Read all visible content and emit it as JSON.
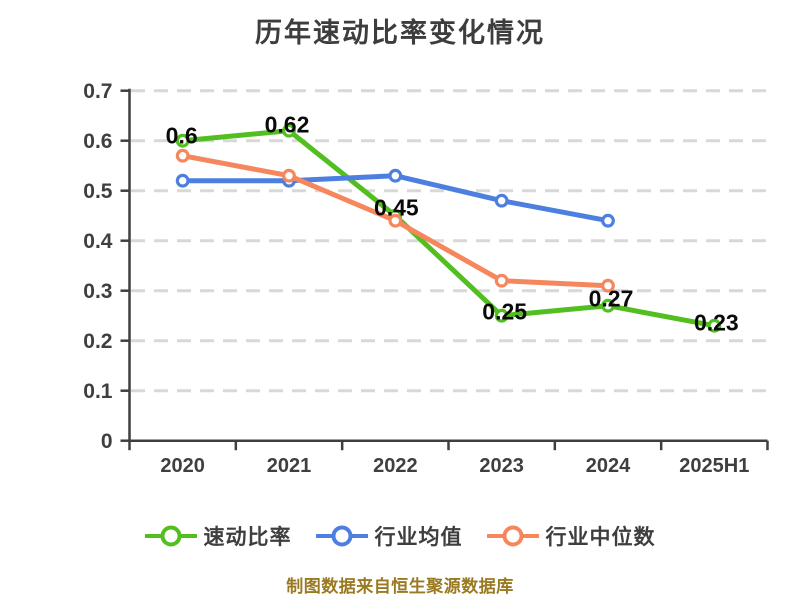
{
  "page": {
    "title": "历年速动比率变化情况",
    "footer": "制图数据来自恒生聚源数据库"
  },
  "chart_data": {
    "type": "line",
    "title": "历年速动比率变化情况",
    "categories": [
      "2020",
      "2021",
      "2022",
      "2023",
      "2024",
      "2025H1"
    ],
    "series": [
      {
        "name": "速动比率",
        "color": "#53be20",
        "values": [
          0.6,
          0.62,
          0.45,
          0.25,
          0.27,
          0.23
        ],
        "labels": [
          "0.6",
          "0.62",
          "0.45",
          "0.25",
          "0.27",
          "0.23"
        ]
      },
      {
        "name": "行业均值",
        "color": "#4d7fe0",
        "values": [
          0.52,
          0.52,
          0.53,
          0.48,
          0.44,
          null
        ],
        "labels": null
      },
      {
        "name": "行业中位数",
        "color": "#f6875c",
        "values": [
          0.57,
          0.53,
          0.44,
          0.32,
          0.31,
          null
        ],
        "labels": null
      }
    ],
    "ylim": [
      0,
      0.7
    ],
    "ytick_step": 0.1,
    "ytick_labels": [
      "0",
      "0.1",
      "0.2",
      "0.3",
      "0.4",
      "0.5",
      "0.6",
      "0.7"
    ],
    "grid": "horizontal-dashed",
    "legend_position": "bottom",
    "marker": "circle-white-fill"
  },
  "colors": {
    "axis": "#3f3f3f",
    "tick_label": "#3f3f3f",
    "grid": "#d8d8d8",
    "data_label": "#0a0a0a",
    "background": "#ffffff",
    "title": "#3d3d3d",
    "footer": "#9a7a20"
  }
}
